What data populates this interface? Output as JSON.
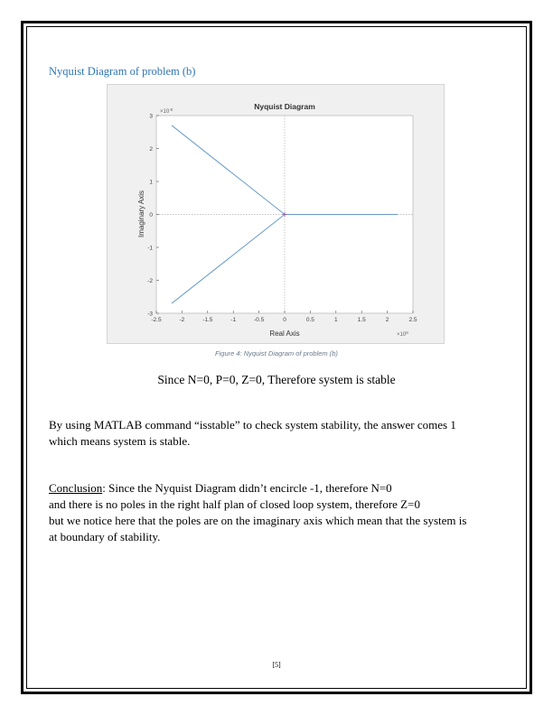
{
  "heading": "Nyquist Diagram of problem (b)",
  "chart_data": {
    "type": "line",
    "title": "Nyquist Diagram",
    "xlabel": "Real Axis",
    "ylabel": "Imaginary Axis",
    "x_exponent_label": "×10",
    "x_exponent_power": "8",
    "y_exponent_label": "×10",
    "y_exponent_power": "-8",
    "xlim": [
      -2.5,
      2.5
    ],
    "ylim": [
      -3,
      3
    ],
    "xticks": [
      "-2.5",
      "-2",
      "-1.5",
      "-1",
      "-0.5",
      "0",
      "0.5",
      "1",
      "1.5",
      "2",
      "2.5"
    ],
    "yticks": [
      "-3",
      "-2",
      "-1",
      "0",
      "1",
      "2",
      "3"
    ],
    "grid": "dotted zero lines",
    "color": "#6a9cc8",
    "series": [
      {
        "segments": [
          [
            [
              -2.2,
              2.7
            ],
            [
              0,
              0
            ]
          ],
          [
            [
              -2.2,
              -2.7
            ],
            [
              0,
              0
            ]
          ],
          [
            [
              0,
              0
            ],
            [
              2.2,
              0
            ]
          ]
        ]
      }
    ]
  },
  "caption": "Figure 4: Nyquist Diagram of problem (b)",
  "statement": "Since N=0, P=0, Z=0, Therefore system is stable",
  "paragraph1": {
    "line1": "By using MATLAB command “isstable” to check system stability, the answer comes 1",
    "line2": "which means system is stable."
  },
  "conclusion": {
    "label": "Conclusion",
    "colon": ":",
    "line1": " Since the Nyquist Diagram didn’t encircle -1, therefore N=0",
    "line2": "and there is no poles in the right half plan of closed loop system, therefore Z=0",
    "line3": "but we notice here that the poles are on the imaginary axis which mean that the system is",
    "line4": "at boundary of stability."
  },
  "page_number": "[5]"
}
